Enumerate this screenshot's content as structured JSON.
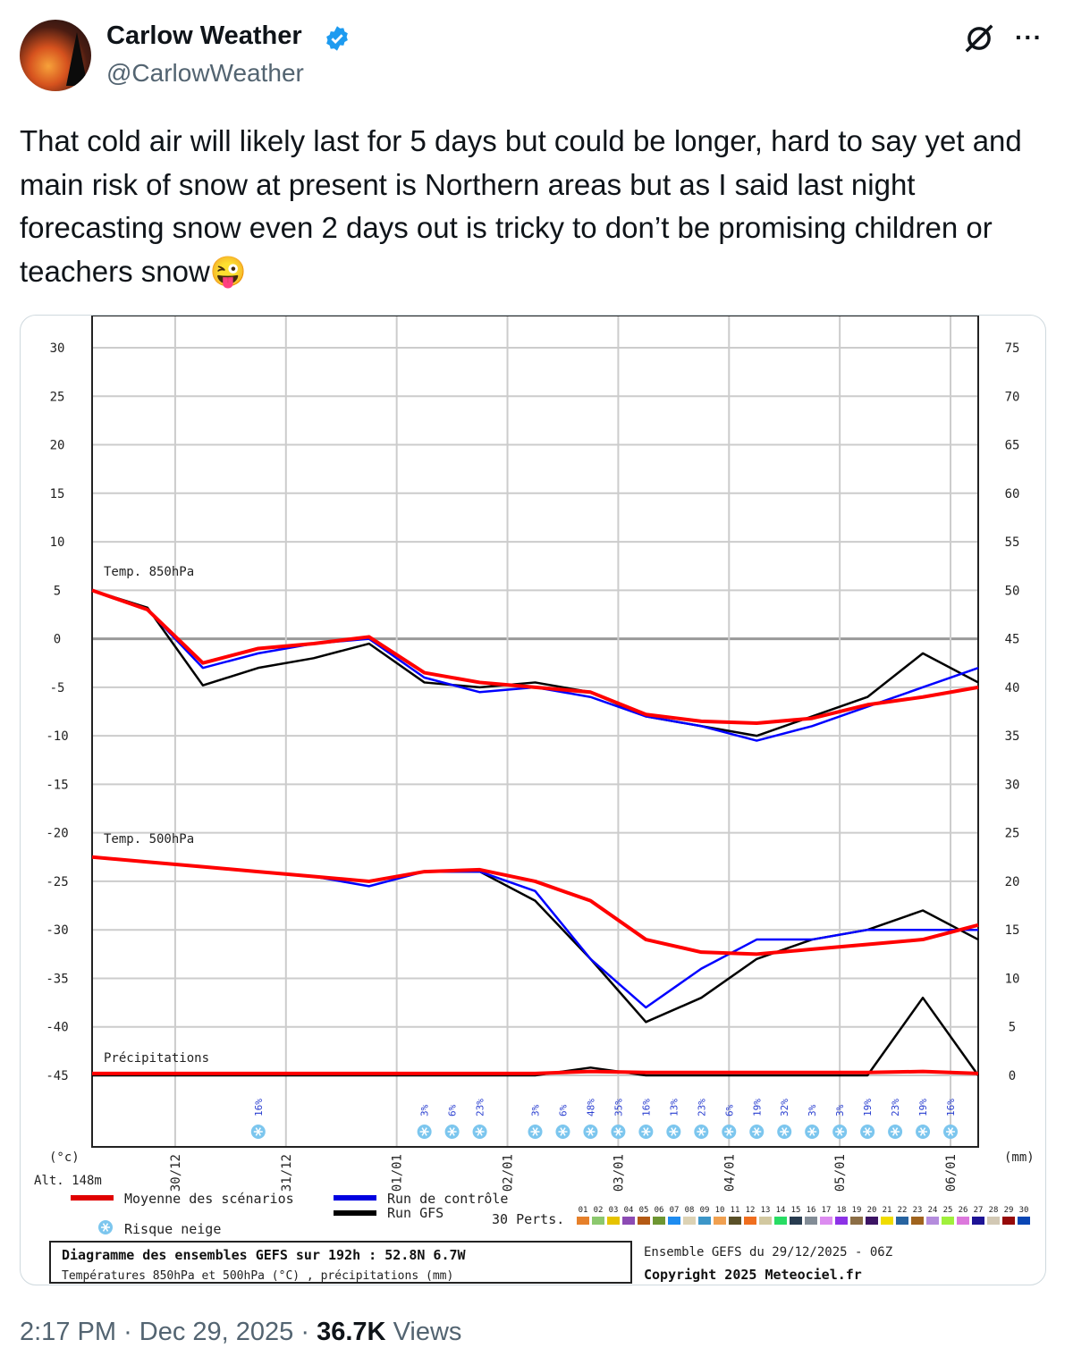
{
  "tweet": {
    "author_name": "Carlow Weather",
    "handle": "@CarlowWeather",
    "verified": true,
    "text": "That cold air will likely last for 5 days but could be longer, hard to say yet and main risk of snow at present is Northern areas but as I said last night forecasting snow even 2 days out is tricky to don’t be promising children or teachers snow😜",
    "time": "2:17 PM",
    "date": "Dec 29, 2025",
    "views": "36.7K",
    "views_label": "Views",
    "separator": "·",
    "icons": {
      "grok": "grok-icon",
      "more": "more-icon",
      "verified": "verified-badge-icon"
    },
    "more_label": "···"
  },
  "chart_data": {
    "type": "line",
    "hours": [
      0,
      12,
      24,
      36,
      48,
      60,
      72,
      84,
      96,
      108,
      120,
      132,
      144,
      156,
      168,
      180,
      192
    ],
    "date_ticks": [
      "30/12",
      "31/12",
      "01/01",
      "02/01",
      "03/01",
      "04/01",
      "05/01",
      "06/01"
    ],
    "left_axis": {
      "label": "(°c)",
      "ticks": [
        30,
        25,
        20,
        15,
        10,
        5,
        0,
        -5,
        -10,
        -15,
        -20,
        -25,
        -30,
        -35,
        -40,
        -45
      ],
      "range": [
        -45,
        30
      ]
    },
    "right_axis": {
      "label": "(mm)",
      "ticks": [
        75,
        70,
        65,
        60,
        55,
        50,
        45,
        40,
        35,
        30,
        25,
        20,
        15,
        10,
        5,
        0
      ],
      "range": [
        0,
        75
      ]
    },
    "altitude": "Alt. 148m",
    "panels": [
      {
        "label": "Temp. 850hPa",
        "series": [
          {
            "name": "Moyenne des scénarios",
            "color": "#ff0000",
            "values": [
              5,
              3,
              -2.5,
              -1,
              -0.5,
              0.2,
              -3.5,
              -4.5,
              -5,
              -5.5,
              -7.8,
              -8.5,
              -8.7,
              -8.2,
              -6.8,
              -6,
              -5
            ]
          },
          {
            "name": "Run de contrôle",
            "color": "#0000ff",
            "values": [
              5,
              3,
              -3,
              -1.5,
              -0.5,
              0,
              -4,
              -5.5,
              -5,
              -6,
              -8,
              -9,
              -10.5,
              -9,
              -7,
              -5,
              -3
            ]
          },
          {
            "name": "Run GFS",
            "color": "#000000",
            "values": [
              5,
              3.2,
              -4.8,
              -3,
              -2,
              -0.5,
              -4.5,
              -5,
              -4.5,
              -5.5,
              -8,
              -9,
              -10,
              -8,
              -6,
              -1.5,
              -4.5
            ]
          }
        ]
      },
      {
        "label": "Temp. 500hPa",
        "series": [
          {
            "name": "Moyenne des scénarios",
            "color": "#ff0000",
            "values": [
              -22.5,
              -23,
              -23.5,
              -24,
              -24.5,
              -25,
              -24,
              -23.8,
              -25,
              -27,
              -31,
              -32.3,
              -32.5,
              -32,
              -31.5,
              -31,
              -29.5
            ]
          },
          {
            "name": "Run de contrôle",
            "color": "#0000ff",
            "values": [
              -22.5,
              -23,
              -23.5,
              -24,
              -24.5,
              -25.5,
              -24,
              -24,
              -26,
              -33,
              -38,
              -34,
              -31,
              -31,
              -30,
              -30,
              -30
            ]
          },
          {
            "name": "Run GFS",
            "color": "#000000",
            "values": [
              -22.5,
              -23,
              -23.5,
              -24,
              -24.5,
              -25,
              -24,
              -24,
              -27,
              -33,
              -39.5,
              -37,
              -33,
              -31,
              -30,
              -28,
              -31
            ]
          }
        ]
      },
      {
        "label": "Précipitations",
        "series": [
          {
            "name": "Moyenne des scénarios",
            "color": "#ff0000",
            "values": [
              0.2,
              0.2,
              0.2,
              0.2,
              0.2,
              0.2,
              0.2,
              0.2,
              0.2,
              0.4,
              0.3,
              0.3,
              0.3,
              0.3,
              0.3,
              0.4,
              0.2
            ]
          },
          {
            "name": "Run GFS",
            "color": "#000000",
            "values": [
              0,
              0,
              0,
              0,
              0,
              0,
              0,
              0,
              0,
              0.8,
              0,
              0,
              0,
              0,
              0,
              8,
              0
            ]
          }
        ]
      }
    ],
    "snow_risk": {
      "hours": [
        36,
        72,
        78,
        84,
        96,
        102,
        108,
        114,
        120,
        126,
        132,
        138,
        144,
        150,
        156,
        162,
        168,
        174,
        180,
        186
      ],
      "labels": [
        "16%",
        "3%",
        "6%",
        "23%",
        "3%",
        "6%",
        "48%",
        "35%",
        "16%",
        "13%",
        "23%",
        "6%",
        "19%",
        "32%",
        "3%",
        "3%",
        "19%",
        "23%",
        "19%",
        "16%"
      ]
    },
    "legend": {
      "mean": "Moyenne des scénarios",
      "control": "Run de contrôle",
      "gfs": "Run GFS",
      "snow": "Risque neige",
      "perts_label": "30 Perts.",
      "perts": [
        "01",
        "02",
        "03",
        "04",
        "05",
        "06",
        "07",
        "08",
        "09",
        "10",
        "11",
        "12",
        "13",
        "14",
        "15",
        "16",
        "17",
        "18",
        "19",
        "20",
        "21",
        "22",
        "23",
        "24",
        "25",
        "26",
        "27",
        "28",
        "29",
        "30"
      ],
      "pert_colors": [
        "#e6802a",
        "#8cc86e",
        "#e6c300",
        "#8c4bb4",
        "#b45a14",
        "#6e9632",
        "#1e8cf0",
        "#dcd2b4",
        "#3c96c8",
        "#f0a050",
        "#5a5028",
        "#f06e1e",
        "#d2c8a0",
        "#28dc64",
        "#283c50",
        "#828c96",
        "#dc8cf0",
        "#8c32e6",
        "#8c6e46",
        "#3c1464",
        "#f0dc00",
        "#2864a0",
        "#a0641e",
        "#b48cdc",
        "#a0f03c",
        "#dc78dc",
        "#1e1496",
        "#d2c8b4",
        "#960a0a",
        "#0a46b4"
      ]
    },
    "caption": {
      "title": "Diagramme des ensembles GEFS sur 192h : 52.8N 6.7W",
      "subtitle": "Températures 850hPa et 500hPa (°C) , précipitations (mm)",
      "run": "Ensemble GEFS du 29/12/2025 - 06Z",
      "copyright": "Copyright 2025 Meteociel.fr"
    }
  }
}
